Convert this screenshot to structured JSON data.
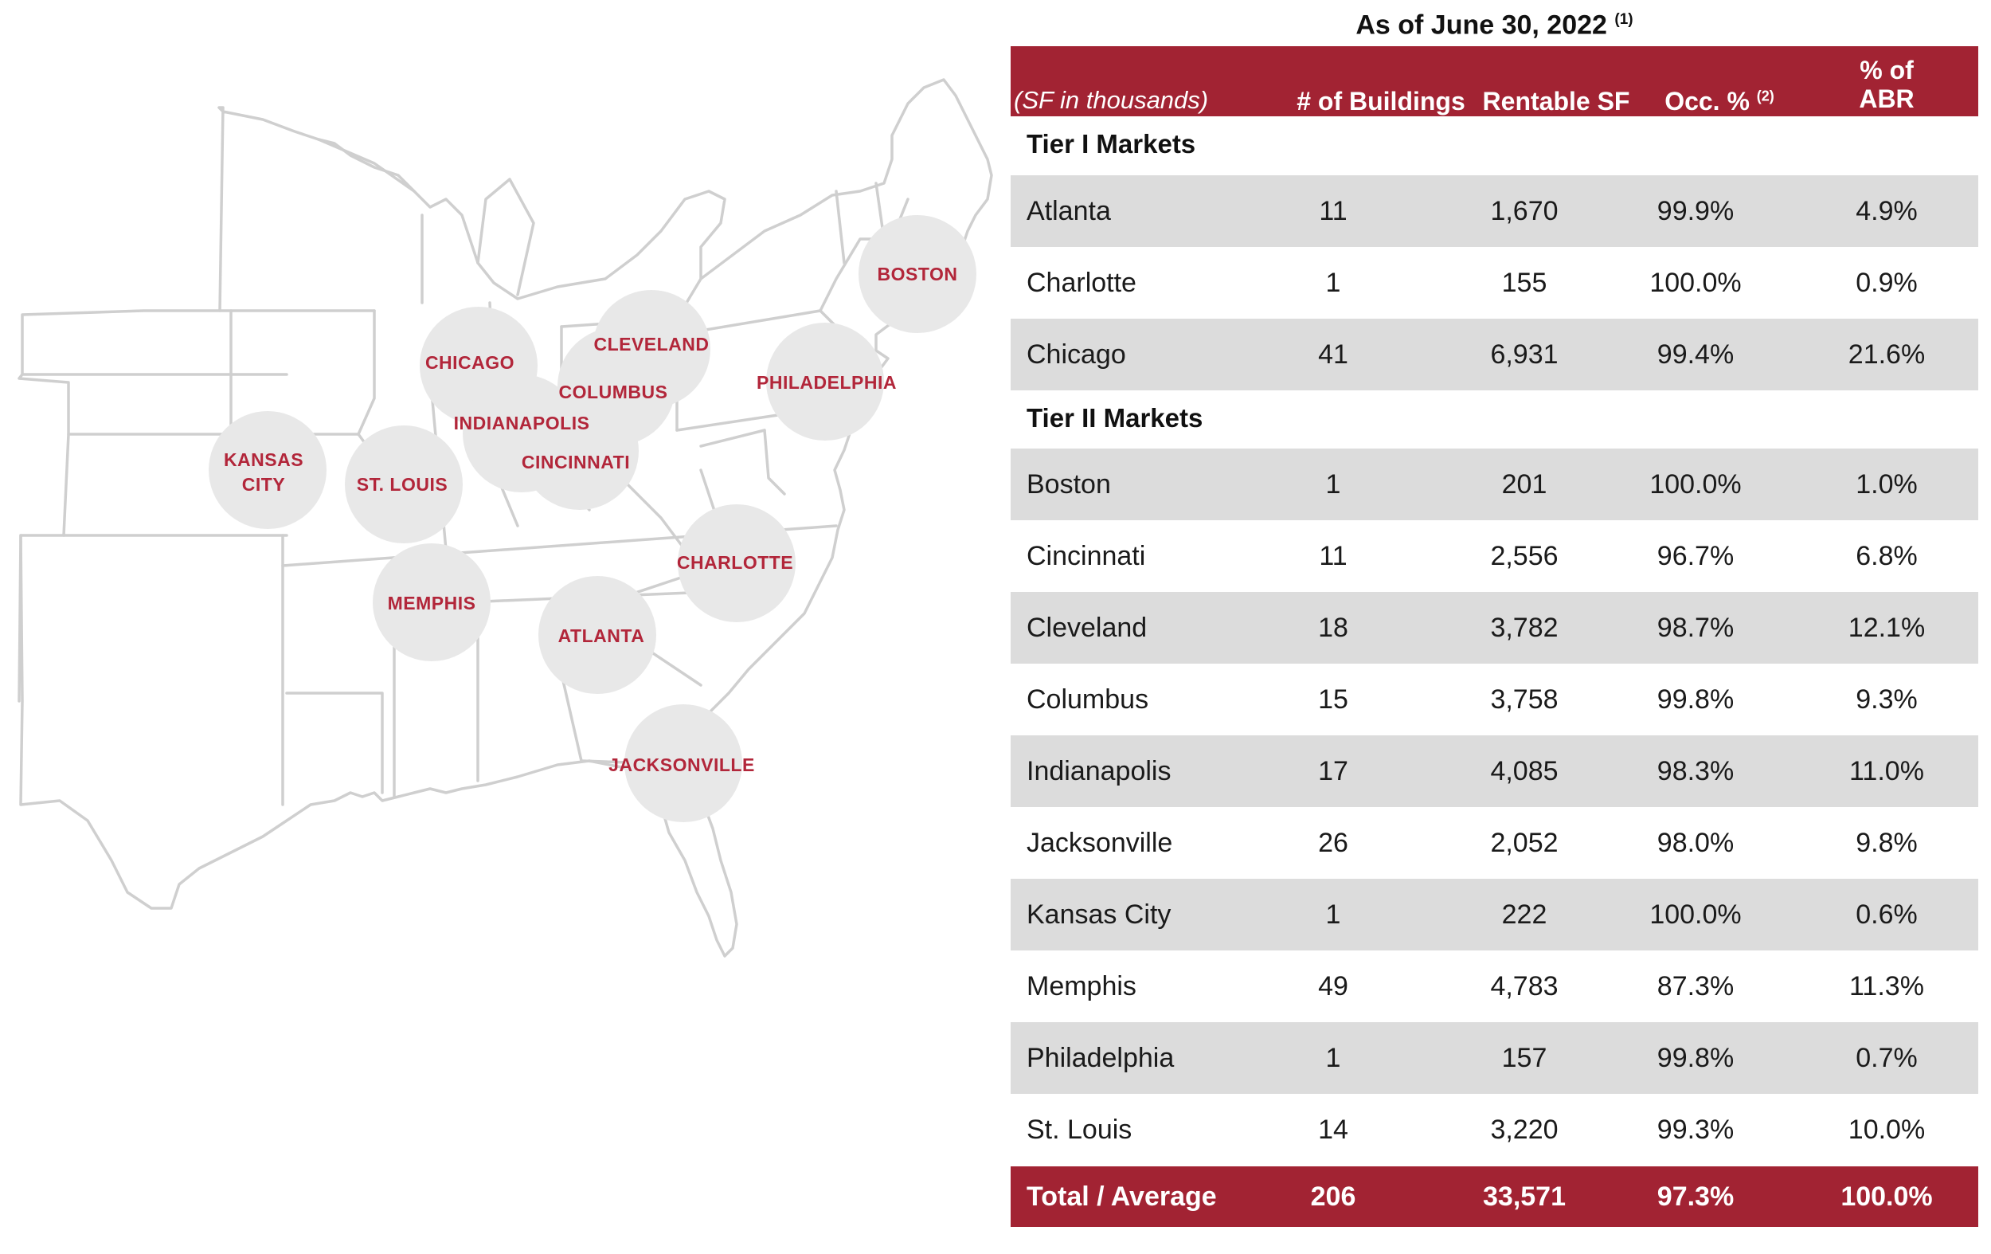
{
  "table": {
    "as_of": "As of June 30, 2022",
    "as_of_note": "(1)",
    "headers": {
      "sf_note": "(SF in thousands)",
      "buildings": "# of Buildings",
      "rentable_sf": "Rentable SF",
      "occ": "Occ. %",
      "occ_note": "(2)",
      "abr_line1": "% of",
      "abr_line2": "ABR"
    },
    "tier1_label": "Tier I Markets",
    "tier2_label": "Tier II Markets",
    "tier1_rows": [
      {
        "market": "Atlanta",
        "buildings": "11",
        "sf": "1,670",
        "occ": "99.9%",
        "abr": "4.9%"
      },
      {
        "market": "Charlotte",
        "buildings": "1",
        "sf": "155",
        "occ": "100.0%",
        "abr": "0.9%"
      },
      {
        "market": "Chicago",
        "buildings": "41",
        "sf": "6,931",
        "occ": "99.4%",
        "abr": "21.6%"
      }
    ],
    "tier2_rows": [
      {
        "market": "Boston",
        "buildings": "1",
        "sf": "201",
        "occ": "100.0%",
        "abr": "1.0%"
      },
      {
        "market": "Cincinnati",
        "buildings": "11",
        "sf": "2,556",
        "occ": "96.7%",
        "abr": "6.8%"
      },
      {
        "market": "Cleveland",
        "buildings": "18",
        "sf": "3,782",
        "occ": "98.7%",
        "abr": "12.1%"
      },
      {
        "market": "Columbus",
        "buildings": "15",
        "sf": "3,758",
        "occ": "99.8%",
        "abr": "9.3%"
      },
      {
        "market": "Indianapolis",
        "buildings": "17",
        "sf": "4,085",
        "occ": "98.3%",
        "abr": "11.0%"
      },
      {
        "market": "Jacksonville",
        "buildings": "26",
        "sf": "2,052",
        "occ": "98.0%",
        "abr": "9.8%"
      },
      {
        "market": "Kansas City",
        "buildings": "1",
        "sf": "222",
        "occ": "100.0%",
        "abr": "0.6%"
      },
      {
        "market": "Memphis",
        "buildings": "49",
        "sf": "4,783",
        "occ": "87.3%",
        "abr": "11.3%"
      },
      {
        "market": "Philadelphia",
        "buildings": "1",
        "sf": "157",
        "occ": "99.8%",
        "abr": "0.7%"
      },
      {
        "market": "St. Louis",
        "buildings": "14",
        "sf": "3,220",
        "occ": "99.3%",
        "abr": "10.0%"
      }
    ],
    "total": {
      "market": "Total / Average",
      "buildings": "206",
      "sf": "33,571",
      "occ": "97.3%",
      "abr": "100.0%"
    }
  },
  "map": {
    "colors": {
      "bubble": "#e8e8e8",
      "label": "#b2263a",
      "state_lines": "#cfcfcf"
    },
    "cities": [
      {
        "key": "kansas-city",
        "line1": "KANSAS",
        "line2": "CITY"
      },
      {
        "key": "st-louis",
        "line1": "ST. LOUIS"
      },
      {
        "key": "chicago",
        "line1": "CHICAGO"
      },
      {
        "key": "indianapolis",
        "line1": "INDIANAPOLIS"
      },
      {
        "key": "columbus",
        "line1": "COLUMBUS"
      },
      {
        "key": "cleveland",
        "line1": "CLEVELAND"
      },
      {
        "key": "cincinnati",
        "line1": "CINCINNATI"
      },
      {
        "key": "philadelphia",
        "line1": "PHILADELPHIA"
      },
      {
        "key": "boston",
        "line1": "BOSTON"
      },
      {
        "key": "charlotte",
        "line1": "CHARLOTTE"
      },
      {
        "key": "memphis",
        "line1": "MEMPHIS"
      },
      {
        "key": "atlanta",
        "line1": "ATLANTA"
      },
      {
        "key": "jacksonville",
        "line1": "JACKSONVILLE"
      }
    ]
  },
  "colors": {
    "accent": "#a22333",
    "row_shade": "#dcdcdc"
  }
}
